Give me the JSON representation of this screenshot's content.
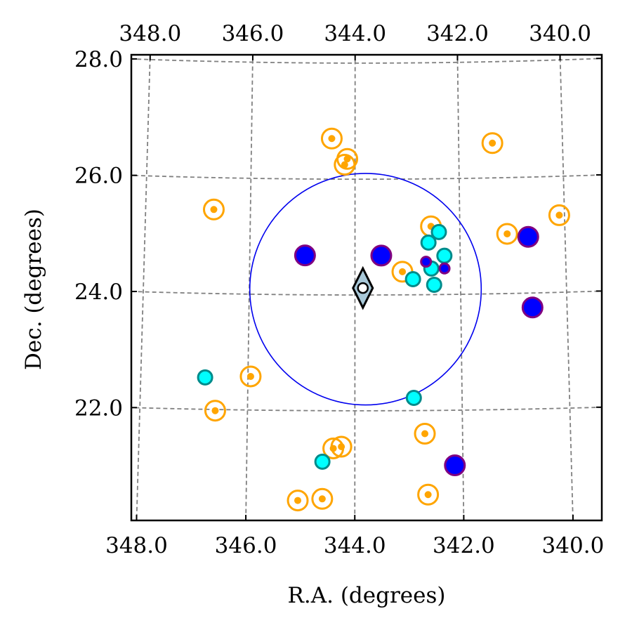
{
  "chart_data": {
    "type": "scatter",
    "projection": "sky map (RA increases to the left), curved coordinate grid",
    "title": "",
    "xlabel": "R.A. (degrees)",
    "ylabel": "Dec. (degrees)",
    "xlim": [
      348.1,
      339.4
    ],
    "ylim": [
      20.1,
      28.1
    ],
    "x_ticks": [
      "348.0",
      "346.0",
      "344.0",
      "342.0",
      "340.0"
    ],
    "y_ticks": [
      "28.0",
      "26.0",
      "24.0",
      "22.0"
    ],
    "grid": true,
    "grid_style": "dashed gray",
    "region_circle": {
      "ra": 343.8,
      "dec": 24.1,
      "radius_deg": 2.0,
      "color": "#0000ee"
    },
    "center_marker": {
      "shape": "diamond",
      "ra": 343.85,
      "dec": 24.12,
      "fill": "#a8c8d8"
    },
    "colors": {
      "orange": "#ffa500",
      "cyan": "#00ffff",
      "teal_edge": "#008b8b",
      "blue": "#0000ff",
      "purple": "#800080",
      "grid": "#808080"
    },
    "points": [
      {
        "ra": 344.45,
        "dec": 26.7,
        "style": "orange-ring"
      },
      {
        "ra": 344.15,
        "dec": 26.35,
        "style": "orange-ring"
      },
      {
        "ra": 344.2,
        "dec": 26.25,
        "style": "orange-ring"
      },
      {
        "ra": 341.35,
        "dec": 26.6,
        "style": "orange-ring"
      },
      {
        "ra": 346.7,
        "dec": 25.45,
        "style": "orange-ring"
      },
      {
        "ra": 340.1,
        "dec": 25.33,
        "style": "orange-ring"
      },
      {
        "ra": 341.1,
        "dec": 25.03,
        "style": "orange-ring"
      },
      {
        "ra": 342.55,
        "dec": 25.18,
        "style": "orange-ring"
      },
      {
        "ra": 343.1,
        "dec": 24.4,
        "style": "orange-ring"
      },
      {
        "ra": 345.95,
        "dec": 22.58,
        "style": "orange-ring"
      },
      {
        "ra": 346.6,
        "dec": 21.98,
        "style": "orange-ring"
      },
      {
        "ra": 342.7,
        "dec": 21.6,
        "style": "orange-ring"
      },
      {
        "ra": 344.4,
        "dec": 21.35,
        "style": "orange-ring"
      },
      {
        "ra": 344.25,
        "dec": 21.38,
        "style": "orange-ring"
      },
      {
        "ra": 345.05,
        "dec": 20.45,
        "style": "orange-ring"
      },
      {
        "ra": 344.6,
        "dec": 20.48,
        "style": "orange-ring"
      },
      {
        "ra": 342.65,
        "dec": 20.55,
        "style": "orange-ring"
      },
      {
        "ra": 342.4,
        "dec": 25.08,
        "style": "cyan"
      },
      {
        "ra": 342.6,
        "dec": 24.9,
        "style": "cyan"
      },
      {
        "ra": 342.3,
        "dec": 24.67,
        "style": "cyan"
      },
      {
        "ra": 342.55,
        "dec": 24.45,
        "style": "cyan"
      },
      {
        "ra": 342.9,
        "dec": 24.27,
        "style": "cyan"
      },
      {
        "ra": 342.5,
        "dec": 24.17,
        "style": "cyan"
      },
      {
        "ra": 346.8,
        "dec": 22.55,
        "style": "cyan"
      },
      {
        "ra": 342.9,
        "dec": 22.22,
        "style": "cyan"
      },
      {
        "ra": 344.6,
        "dec": 21.12,
        "style": "cyan"
      },
      {
        "ra": 343.5,
        "dec": 24.68,
        "style": "blue"
      },
      {
        "ra": 344.95,
        "dec": 24.68,
        "style": "blue"
      },
      {
        "ra": 340.7,
        "dec": 24.97,
        "style": "blue"
      },
      {
        "ra": 340.65,
        "dec": 23.75,
        "style": "blue"
      },
      {
        "ra": 342.15,
        "dec": 21.05,
        "style": "blue"
      },
      {
        "ra": 342.65,
        "dec": 24.57,
        "style": "purple"
      },
      {
        "ra": 342.3,
        "dec": 24.45,
        "style": "purple"
      }
    ]
  }
}
